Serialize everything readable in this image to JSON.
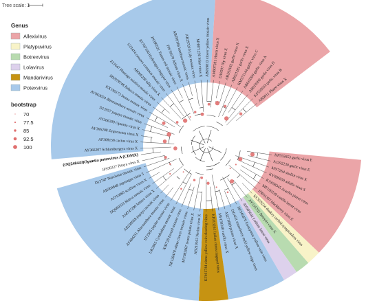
{
  "tree_scale": {
    "label": "Tree scale: 1"
  },
  "legend": {
    "genus_title": "Genus",
    "genera": [
      {
        "name": "Allexivirus",
        "color": "#eba5a8"
      },
      {
        "name": "Platypuvirus",
        "color": "#f8f3c8"
      },
      {
        "name": "Botrexvirus",
        "color": "#b8dbb0"
      },
      {
        "name": "Lolavirus",
        "color": "#ddd1ec"
      },
      {
        "name": "Mandarivirus",
        "color": "#c69312"
      },
      {
        "name": "Potexvirus",
        "color": "#a7c9ea"
      }
    ],
    "bootstrap_title": "bootstrap",
    "bootstrap_values": [
      {
        "value": "70"
      },
      {
        "value": "77.5"
      },
      {
        "value": "85"
      },
      {
        "value": "92.5"
      },
      {
        "value": "100"
      }
    ]
  },
  "highlight_leaf": "(OQ240443)Opuntia potexvirus A (CDMX)",
  "leaves": [
    "KF555653 garlic virus E",
    "AJ292230 garlic virus E",
    "MY7264 shallot virus X",
    "KY696659 alfalfa virus S",
    "KX058345 Arachis pintoi virus",
    "MF150239 vanilla latent virus",
    "JN051397 blackberry virus E",
    "KC929234 donkey orchid symptomless virus",
    "AY555765 Botrytis virus X",
    "AY005641 Lolium latent virus",
    "HF545870 Euonymus yellow vein virus",
    "DJ1431 strawberry mild yellow edge virus",
    "AJ271089 potato virus X",
    "MF150240 vanilla virus X",
    "KP313261 Indian citrus ringspot virus",
    "KF461744 citrus yellow vein clearing virus",
    "AB219163 Nerine virus X",
    "MY082867 sweet potato virus X",
    "XR128478 white clover mosaic virus",
    "X06728 foxtail mosaic virus",
    "UR2965 Cymbidium mosaic virus",
    "ST2365 pepino mosaic virus",
    "AF484251 Alternanthera mosaic virus",
    "AB298958 papaya mosaic virus",
    "AM747290 lettuce virus X",
    "DQ660333 Malva mosaic virus",
    "AJ316085 scallion virus X",
    "AB304848 asparagus virus 3",
    "D13747 Narcissus mosaic virus",
    "JF930327 Pitaya virus X",
    "(OQ240443)Opuntia potexvirus A (CDMX)",
    "AY366207 Schlumbergera virus X",
    "AF308158 cactus virus X",
    "AY366208 Zygocactus virus X",
    "AY366209 Opuntia virus X",
    "D13957 papaya mosaic virus",
    "AY863024 Alternanthera mosaic virus",
    "KX196173 Senna mosaic virus",
    "MN978748 Babaco mosaic virus",
    "Z21647 Plantago asiatica mosaic virus",
    "AB066288 tulip virus X",
    "U23414 cassava common mosaic virus",
    "AY707100 Hydrangea ringspot virus",
    "JN399521 Tamus red mosaic virus",
    "FJ670570 Allium virus X",
    "AB299166 bamboo mosaic virus",
    "AB297210 Lily mosaic virus",
    "MH871256 Mint virus X",
    "AB059813 clover yellow mosaic virus",
    "AM007281 Hosta virus X",
    "D10597 lily virus X",
    "AB292182 garlic virus X",
    "AB021281 garlic virus X",
    "KM371144 garlic virus C",
    "AB010300 garlic virus A",
    "AB010300 garlic virus D",
    "KF555653 garlic virus B",
    "AB3011 Phaeo virus X"
  ]
}
